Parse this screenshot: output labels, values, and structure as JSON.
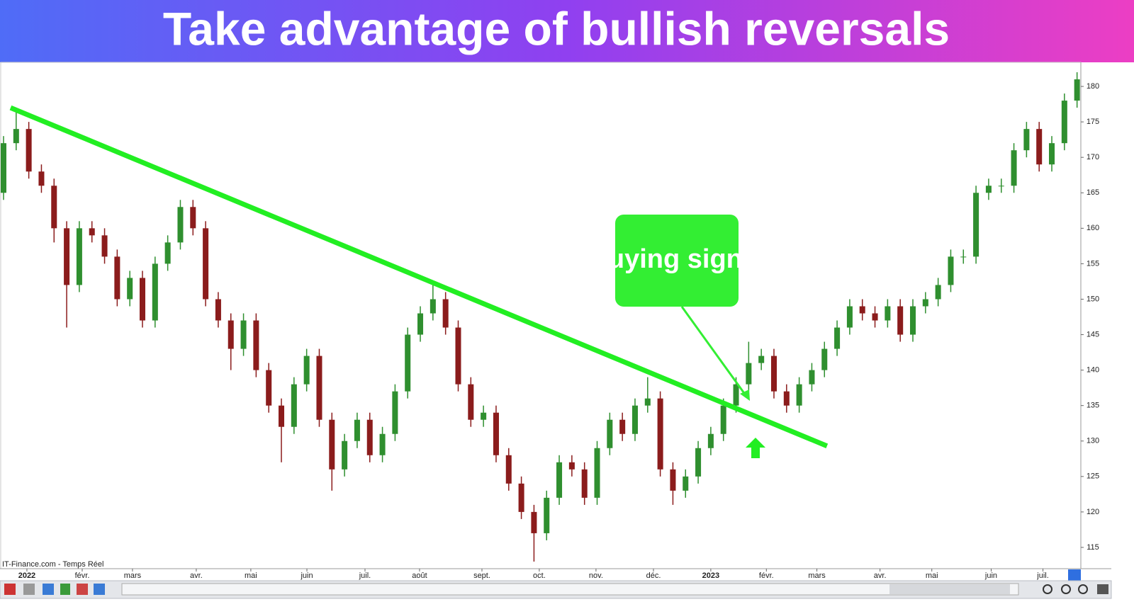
{
  "chart_data": {
    "type": "candlestick",
    "title": "Take advantage of bullish reversals",
    "source": "IT-Finance.com - Temps Réel",
    "annotation": "Buying signal",
    "up_color": "#2f8f2f",
    "down_color": "#8b1c1c",
    "open": [
      165,
      172,
      174,
      168,
      166,
      160,
      152,
      160,
      159,
      156,
      150,
      153,
      147,
      155,
      158,
      163,
      160,
      150,
      147,
      143,
      147,
      140,
      135,
      132,
      138,
      142,
      133,
      126,
      130,
      133,
      128,
      131,
      137,
      145,
      148,
      150,
      146,
      138,
      133,
      134,
      128,
      124,
      120,
      117,
      122,
      127,
      126,
      122,
      129,
      133,
      131,
      135,
      136,
      126,
      123,
      125,
      129,
      131,
      135,
      138,
      141,
      142,
      137,
      135,
      138,
      140,
      143,
      146,
      149,
      148,
      147,
      149,
      145,
      149,
      150,
      152,
      156,
      156,
      165,
      166,
      166,
      171,
      174,
      169,
      172,
      178
    ],
    "high": [
      173,
      177,
      175,
      169,
      167,
      161,
      161,
      161,
      160,
      157,
      154,
      154,
      156,
      159,
      164,
      164,
      161,
      151,
      148,
      148,
      148,
      141,
      136,
      139,
      143,
      143,
      134,
      131,
      134,
      134,
      132,
      138,
      146,
      149,
      152,
      151,
      147,
      139,
      135,
      135,
      129,
      125,
      121,
      123,
      128,
      128,
      127,
      130,
      134,
      134,
      136,
      139,
      137,
      127,
      126,
      130,
      132,
      136,
      139,
      144,
      143,
      143,
      138,
      139,
      141,
      144,
      147,
      150,
      150,
      149,
      150,
      150,
      150,
      151,
      153,
      157,
      157,
      166,
      167,
      167,
      172,
      175,
      175,
      173,
      179,
      182
    ],
    "low": [
      164,
      171,
      167,
      165,
      158,
      146,
      151,
      158,
      155,
      149,
      149,
      146,
      146,
      154,
      157,
      159,
      149,
      146,
      140,
      142,
      139,
      134,
      127,
      131,
      137,
      132,
      123,
      125,
      129,
      127,
      127,
      130,
      136,
      144,
      147,
      145,
      137,
      132,
      132,
      127,
      123,
      119,
      113,
      116,
      121,
      125,
      121,
      121,
      128,
      130,
      130,
      134,
      125,
      121,
      122,
      124,
      128,
      130,
      134,
      137,
      140,
      136,
      134,
      134,
      137,
      139,
      142,
      145,
      147,
      146,
      146,
      144,
      144,
      148,
      149,
      151,
      155,
      155,
      164,
      165,
      165,
      170,
      168,
      168,
      171,
      177
    ],
    "close": [
      172,
      174,
      168,
      166,
      160,
      152,
      160,
      159,
      156,
      150,
      153,
      147,
      155,
      158,
      163,
      160,
      150,
      147,
      143,
      147,
      140,
      135,
      132,
      138,
      142,
      133,
      126,
      130,
      133,
      128,
      131,
      137,
      145,
      148,
      150,
      146,
      138,
      133,
      134,
      128,
      124,
      120,
      117,
      122,
      127,
      126,
      122,
      129,
      133,
      131,
      135,
      136,
      126,
      123,
      125,
      129,
      131,
      135,
      138,
      141,
      142,
      137,
      135,
      138,
      140,
      143,
      146,
      149,
      148,
      147,
      149,
      145,
      149,
      150,
      152,
      156,
      156,
      165,
      166,
      166,
      171,
      174,
      169,
      172,
      178,
      181
    ],
    "xlim": [
      -0.28,
      85.3
    ],
    "xticks": [
      {
        "value": 1.85,
        "label": "2022"
      },
      {
        "value": 6.23,
        "label": "févr."
      },
      {
        "value": 10.21,
        "label": "mars"
      },
      {
        "value": 15.26,
        "label": "avr."
      },
      {
        "value": 19.58,
        "label": "mai"
      },
      {
        "value": 24.02,
        "label": "juin"
      },
      {
        "value": 28.62,
        "label": "juil."
      },
      {
        "value": 32.94,
        "label": "août"
      },
      {
        "value": 37.88,
        "label": "sept."
      },
      {
        "value": 42.42,
        "label": "oct."
      },
      {
        "value": 46.91,
        "label": "nov."
      },
      {
        "value": 51.46,
        "label": "déc."
      },
      {
        "value": 56.0,
        "label": "2023"
      },
      {
        "value": 60.4,
        "label": "févr."
      },
      {
        "value": 64.4,
        "label": "mars"
      },
      {
        "value": 69.4,
        "label": "avr."
      },
      {
        "value": 73.5,
        "label": "mai"
      },
      {
        "value": 78.2,
        "label": "juin"
      },
      {
        "value": 82.3,
        "label": "juil."
      }
    ],
    "ylim": [
      112,
      183.4
    ],
    "yticks": [
      115,
      120,
      125,
      130,
      135,
      140,
      145,
      150,
      155,
      160,
      165,
      170,
      175,
      180
    ],
    "trendline": {
      "start": [
        0.56,
        177
      ],
      "end": [
        65.2,
        129.3
      ],
      "color": "#22ee22"
    }
  }
}
